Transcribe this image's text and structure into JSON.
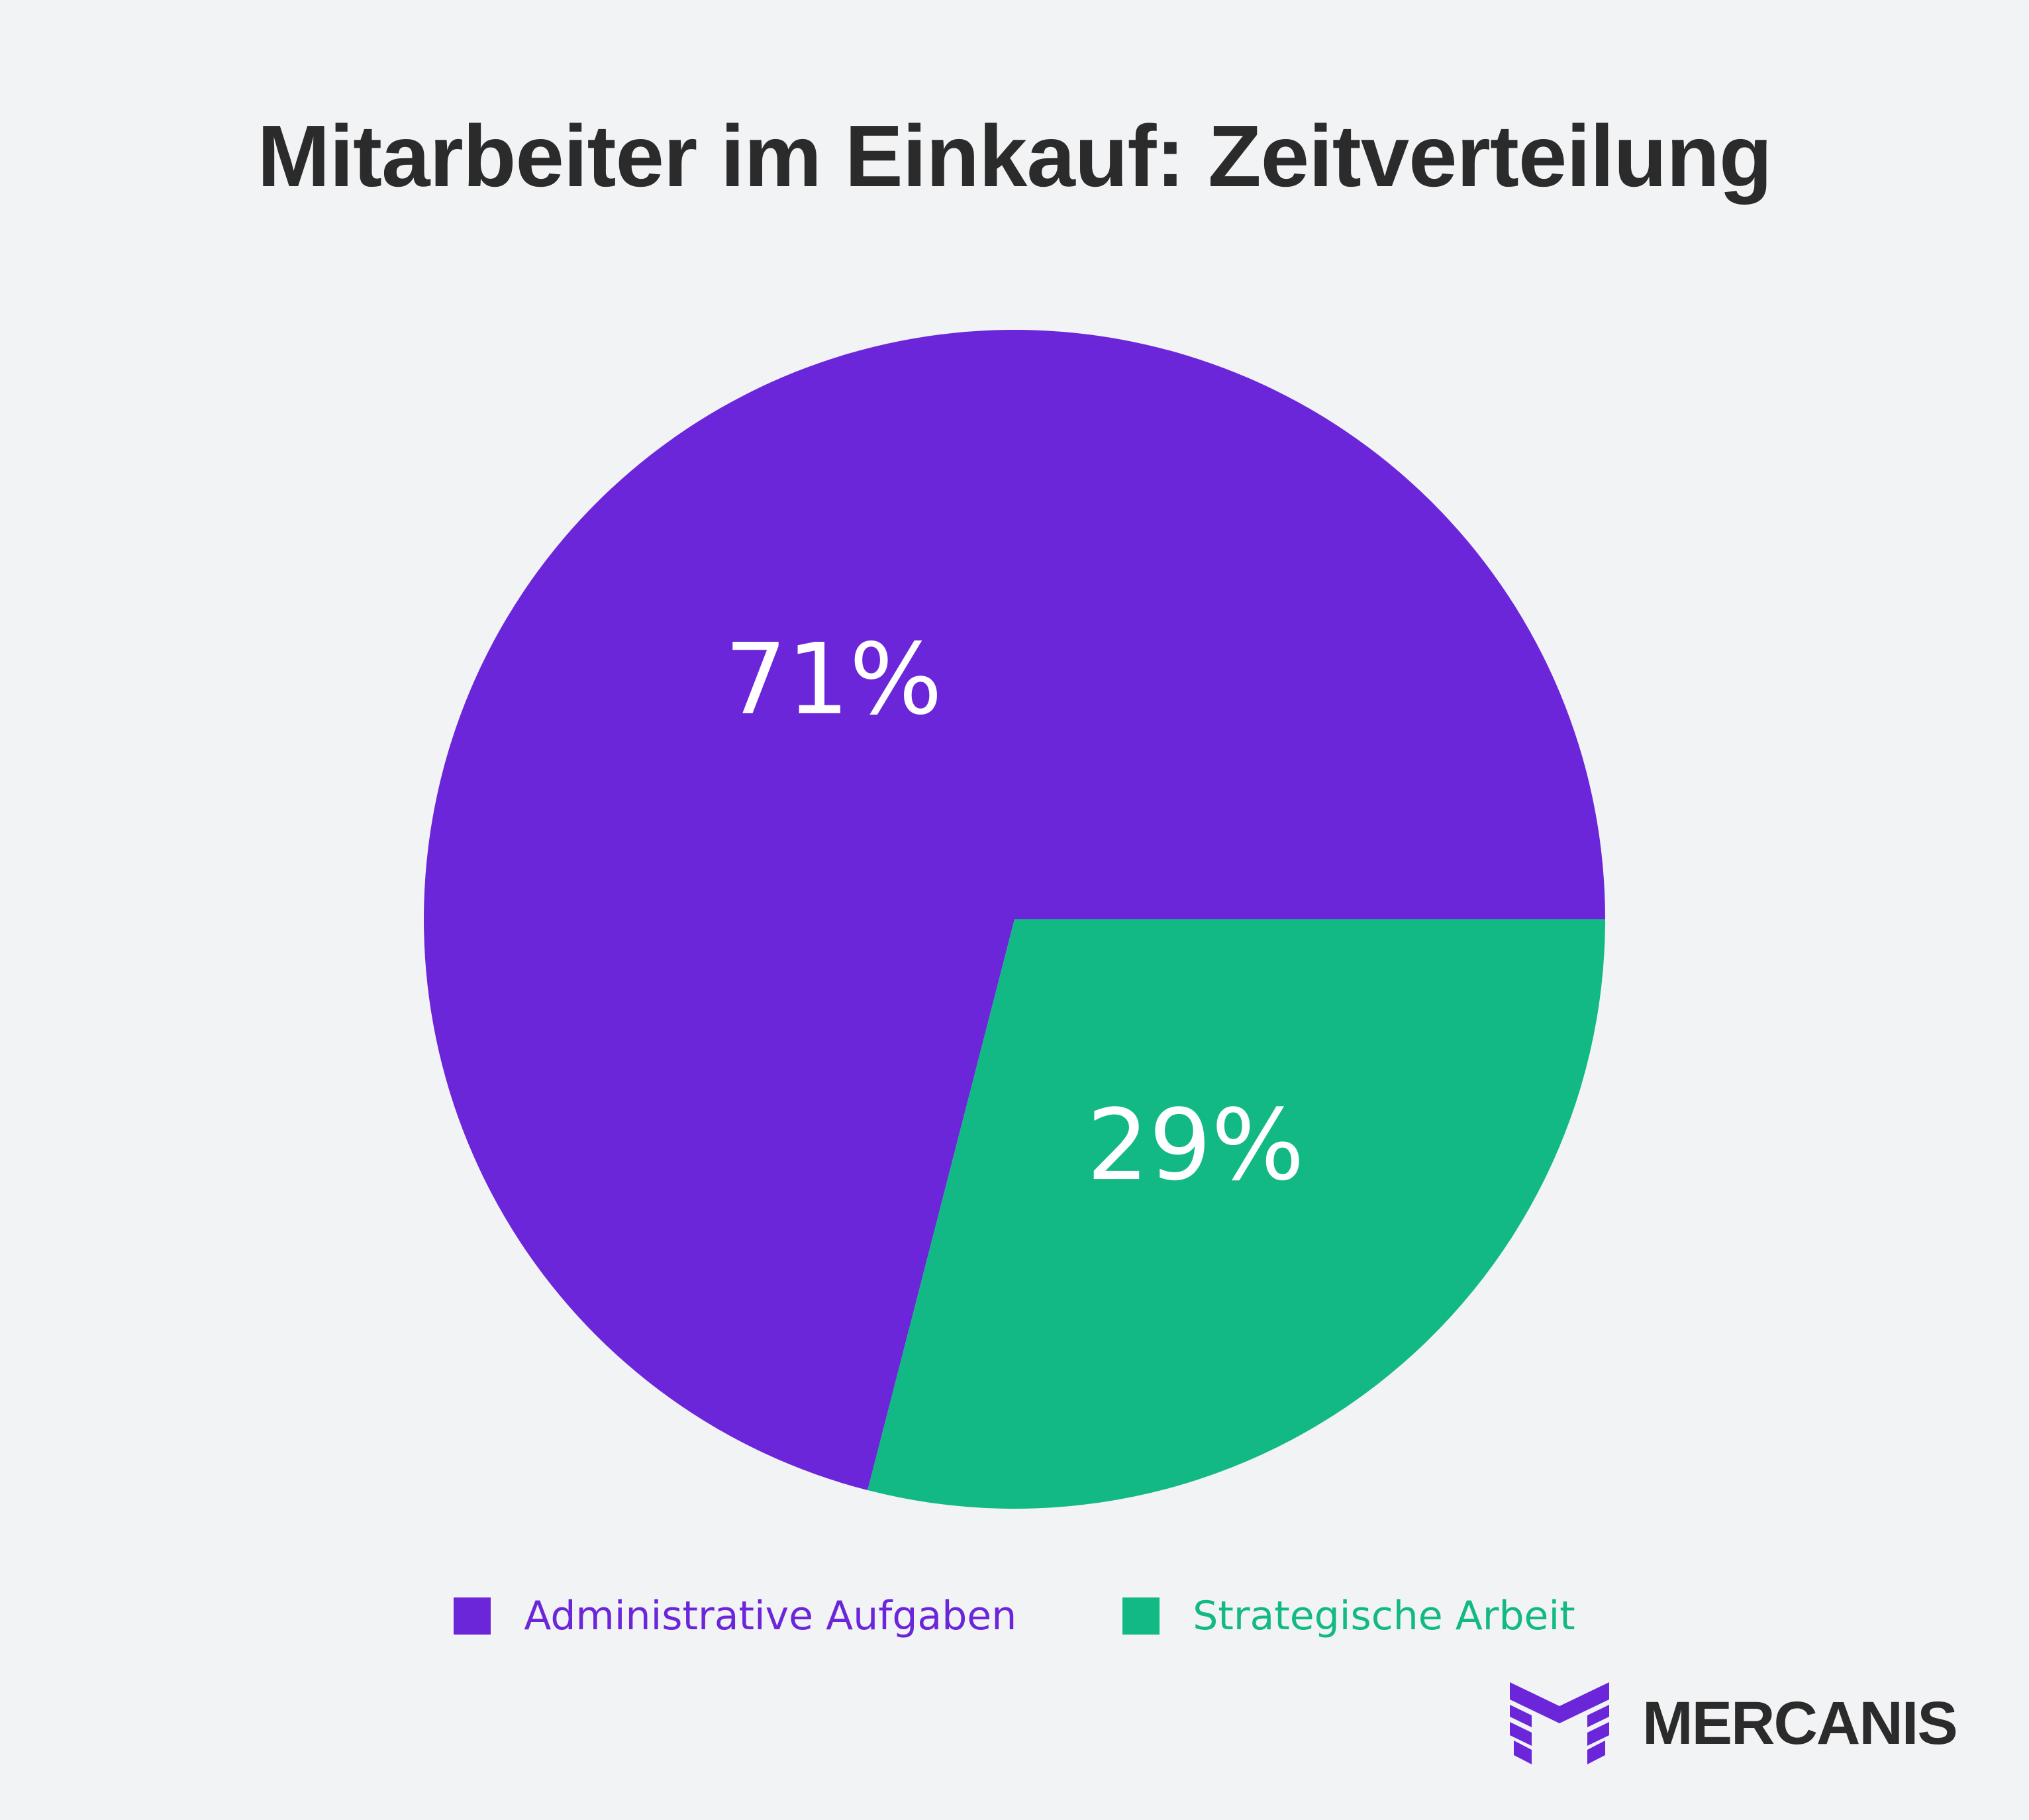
{
  "chart_data": {
    "type": "pie",
    "title": "Mitarbeiter im Einkauf: Zeitverteilung",
    "categories": [
      "Administrative Aufgaben",
      "Strategische Arbeit"
    ],
    "values": [
      71,
      29
    ],
    "data_labels": [
      "71%",
      "29%"
    ],
    "colors": [
      "#6c26d9",
      "#12b985"
    ],
    "legend_position": "bottom"
  },
  "brand": {
    "name": "MERCANIS",
    "logo_icon": "mercanis-m-logo-icon",
    "logo_color": "#6c26d9"
  }
}
